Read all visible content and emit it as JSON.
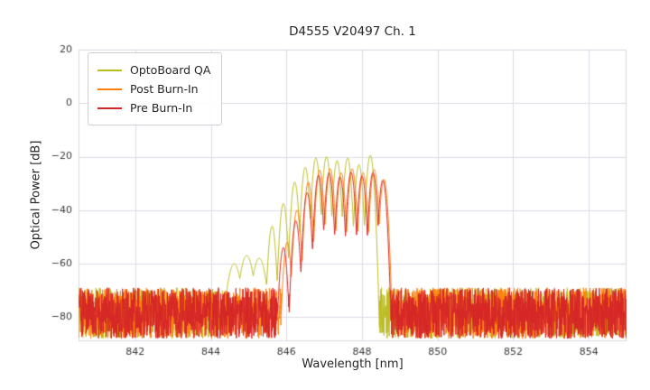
{
  "chart_data": {
    "type": "line",
    "title": "D4555 V20497 Ch. 1",
    "xlabel": "Wavelength [nm]",
    "ylabel": "Optical Power [dB]",
    "xlim": [
      840.5,
      855.0
    ],
    "ylim": [
      -89,
      20
    ],
    "xticks": [
      842,
      844,
      846,
      848,
      850,
      852,
      854
    ],
    "yticks": [
      20,
      0,
      -20,
      -40,
      -60,
      -80
    ],
    "grid": true,
    "legend_position": "upper left",
    "plot_bg": "#ffffff",
    "grid_color": "#dcdde6",
    "border_color": "#d8d8e0",
    "tick_color": "#3a3a3a",
    "sample_step": 0.006,
    "default_lobe_k": 1100,
    "series": [
      {
        "name": "OptoBoard QA",
        "color": "#bcbd22",
        "seed": 7,
        "noise_top": -69,
        "noise_band": 19,
        "peak_db": -19.5,
        "signal_range_nm": [
          844.3,
          848.45
        ],
        "lobes": [
          [
            844.62,
            -60,
            260
          ],
          [
            844.95,
            -57,
            260
          ],
          [
            845.28,
            -58,
            260
          ],
          [
            845.62,
            -46
          ],
          [
            845.92,
            -37.5
          ],
          [
            846.22,
            -29.5
          ],
          [
            846.5,
            -24
          ],
          [
            846.78,
            -20.5
          ],
          [
            847.06,
            -20
          ],
          [
            847.34,
            -21.5
          ],
          [
            847.62,
            -20.5
          ],
          [
            847.92,
            -23
          ],
          [
            848.22,
            -19.5
          ]
        ]
      },
      {
        "name": "Post Burn-In",
        "color": "#ff7f0e",
        "seed": 13,
        "noise_top": -69,
        "noise_band": 19,
        "peak_db": -24.5,
        "signal_range_nm": [
          845.9,
          848.75
        ],
        "lobes": [
          [
            846.02,
            -52
          ],
          [
            846.28,
            -40
          ],
          [
            846.58,
            -29.5
          ],
          [
            846.88,
            -25
          ],
          [
            847.16,
            -24.5
          ],
          [
            847.45,
            -26
          ],
          [
            847.74,
            -24.5
          ],
          [
            848.03,
            -26
          ],
          [
            848.32,
            -24.8
          ],
          [
            848.58,
            -28.5
          ]
        ]
      },
      {
        "name": "Pre Burn-In",
        "color": "#d62728",
        "seed": 29,
        "noise_top": -69,
        "noise_band": 19,
        "peak_db": -25.8,
        "signal_range_nm": [
          845.8,
          848.7
        ],
        "lobes": [
          [
            845.92,
            -54
          ],
          [
            846.25,
            -44
          ],
          [
            846.55,
            -33.5
          ],
          [
            846.85,
            -27
          ],
          [
            847.13,
            -26
          ],
          [
            847.42,
            -27.5
          ],
          [
            847.71,
            -25.8
          ],
          [
            848.0,
            -27.2
          ],
          [
            848.29,
            -26
          ],
          [
            848.55,
            -28.8
          ]
        ]
      }
    ]
  }
}
